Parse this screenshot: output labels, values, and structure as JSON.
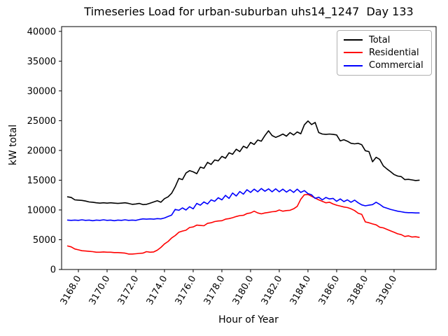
{
  "chart_data": {
    "type": "line",
    "title": "Timeseries Load for urban-suburban uhs14_1247  Day 133",
    "xlabel": "Hour of Year",
    "ylabel": "kW total",
    "grid": false,
    "legend_position": "upper right",
    "xlim": [
      3166.83,
      3192.93
    ],
    "ylim": [
      0,
      40800
    ],
    "x_tick_labels": [
      "3168.0",
      "3170.0",
      "3172.0",
      "3174.0",
      "3176.0",
      "3178.0",
      "3180.0",
      "3182.0",
      "3184.0",
      "3186.0",
      "3188.0",
      "3190.0"
    ],
    "y_tick_labels": [
      "0",
      "5000",
      "10000",
      "15000",
      "20000",
      "25000",
      "30000",
      "35000",
      "40000"
    ],
    "x_start": 3167.25,
    "x_step": 0.25,
    "series": [
      {
        "name": "Total",
        "color": "#000000",
        "values": [
          12200,
          12100,
          11700,
          11650,
          11600,
          11500,
          11350,
          11300,
          11200,
          11150,
          11200,
          11150,
          11200,
          11150,
          11100,
          11150,
          11200,
          11100,
          10950,
          11000,
          11100,
          10900,
          10950,
          11150,
          11350,
          11550,
          11300,
          11900,
          12200,
          12800,
          13900,
          15300,
          15100,
          16200,
          16600,
          16400,
          16100,
          17200,
          17000,
          18000,
          17650,
          18400,
          18250,
          19000,
          18700,
          19600,
          19350,
          20200,
          19800,
          20700,
          20400,
          21350,
          21000,
          21750,
          21550,
          22500,
          23300,
          22500,
          22200,
          22450,
          22750,
          22400,
          23000,
          22600,
          23100,
          22800,
          24300,
          24950,
          24350,
          24700,
          23000,
          22750,
          22700,
          22750,
          22700,
          22600,
          21600,
          21800,
          21550,
          21200,
          21100,
          21200,
          20950,
          19950,
          19800,
          18100,
          18850,
          18500,
          17400,
          16900,
          16450,
          15950,
          15700,
          15600,
          15100,
          15150,
          15050,
          14950,
          15000
        ]
      },
      {
        "name": "Residential",
        "color": "#ff0000",
        "values": [
          3950,
          3800,
          3450,
          3300,
          3150,
          3100,
          3050,
          3000,
          2900,
          2900,
          2950,
          2900,
          2900,
          2850,
          2850,
          2800,
          2750,
          2600,
          2600,
          2650,
          2700,
          2750,
          3000,
          2900,
          2950,
          3250,
          3700,
          4300,
          4700,
          5300,
          5700,
          6250,
          6450,
          6600,
          7050,
          7150,
          7450,
          7400,
          7350,
          7750,
          7850,
          8050,
          8150,
          8200,
          8450,
          8550,
          8700,
          8900,
          9050,
          9100,
          9400,
          9500,
          9800,
          9500,
          9350,
          9500,
          9600,
          9700,
          9750,
          10000,
          9800,
          9900,
          9950,
          10200,
          10600,
          11800,
          12550,
          12600,
          12300,
          12000,
          11700,
          11450,
          11200,
          11300,
          11000,
          10800,
          10650,
          10500,
          10400,
          10200,
          9900,
          9450,
          9250,
          8000,
          7850,
          7650,
          7500,
          7100,
          7000,
          6750,
          6500,
          6250,
          6000,
          5850,
          5550,
          5650,
          5450,
          5500,
          5400
        ]
      },
      {
        "name": "Commercial",
        "color": "#0000ff",
        "values": [
          8300,
          8250,
          8300,
          8250,
          8350,
          8250,
          8300,
          8200,
          8300,
          8250,
          8350,
          8250,
          8300,
          8200,
          8300,
          8250,
          8350,
          8250,
          8300,
          8250,
          8400,
          8500,
          8450,
          8500,
          8450,
          8550,
          8500,
          8650,
          8900,
          9150,
          10100,
          9950,
          10350,
          10000,
          10550,
          10200,
          11100,
          10800,
          11350,
          11000,
          11700,
          11450,
          12050,
          11700,
          12450,
          11950,
          12850,
          12350,
          13100,
          12650,
          13400,
          12950,
          13500,
          13050,
          13600,
          13150,
          13550,
          13050,
          13550,
          13050,
          13500,
          13000,
          13400,
          12950,
          13500,
          12950,
          13250,
          12750,
          12550,
          11950,
          12150,
          11700,
          12100,
          11850,
          11950,
          11450,
          11850,
          11400,
          11700,
          11300,
          11650,
          11200,
          10850,
          10700,
          10800,
          10900,
          11300,
          10950,
          10500,
          10300,
          10100,
          9950,
          9800,
          9700,
          9600,
          9550,
          9550,
          9500,
          9500
        ]
      }
    ]
  }
}
